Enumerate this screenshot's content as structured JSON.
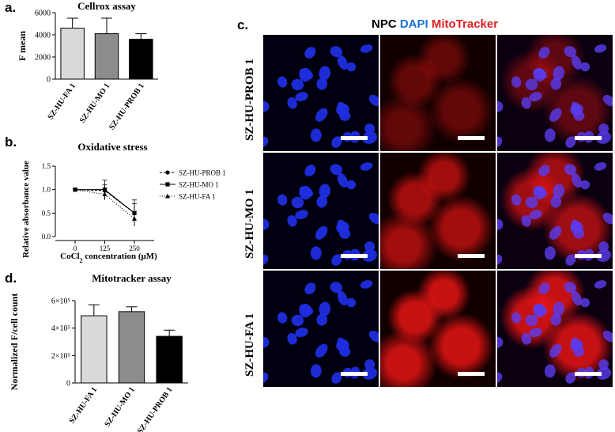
{
  "panel_labels": {
    "a": "a.",
    "b": "b.",
    "c": "c.",
    "d": "d."
  },
  "chart_data": [
    {
      "id": "a",
      "type": "bar",
      "title": "Cellrox assay",
      "ylabel": "F mean",
      "xlabel": "",
      "categories": [
        "SZ-HU-FA 1",
        "SZ-HU-MO 1",
        "SZ-HU-PROB 1"
      ],
      "values": [
        4600,
        4100,
        3600
      ],
      "errors": [
        900,
        1400,
        500
      ],
      "ylim": [
        0,
        6000
      ],
      "yticks": [
        "0",
        "2000",
        "4000",
        "6000"
      ],
      "bar_colors": [
        "#d9d9d9",
        "#8c8c8c",
        "#000000"
      ]
    },
    {
      "id": "b",
      "type": "line",
      "title": "Oxidative stress",
      "ylabel": "Relative absorbance value",
      "xlabel_prefix": "CoCl",
      "xlabel_sub": "2",
      "xlabel_suffix": " concentration (μM)",
      "x": [
        0,
        125,
        250
      ],
      "xticks": [
        "0",
        "125",
        "250"
      ],
      "ylim": [
        0,
        1.5
      ],
      "yticks": [
        "0.0",
        "0.5",
        "1.0",
        "1.5"
      ],
      "series": [
        {
          "name": "SZ-HU-PROB 1",
          "values": [
            1.0,
            0.98,
            0.5
          ],
          "errors": [
            0.02,
            0.12,
            0.28
          ],
          "marker": "circle",
          "dash": "3,2"
        },
        {
          "name": "SZ-HU-MO 1",
          "values": [
            1.0,
            1.0,
            0.5
          ],
          "errors": [
            0.02,
            0.2,
            0.2
          ],
          "marker": "square",
          "dash": ""
        },
        {
          "name": "SZ-HU-FA 1",
          "values": [
            1.0,
            0.9,
            0.38
          ],
          "errors": [
            0.02,
            0.12,
            0.15
          ],
          "marker": "triangle",
          "dash": "1,2"
        }
      ]
    },
    {
      "id": "d",
      "type": "bar",
      "title": "Mitotracker assay",
      "ylabel": "Normalized F/cell count",
      "xlabel": "",
      "categories": [
        "SZ-HU-FA 1",
        "SZ-HU-MO 1",
        "SZ-HU-PROB 1"
      ],
      "values": [
        490000,
        520000,
        340000
      ],
      "errors": [
        80000,
        35000,
        45000
      ],
      "ylim": [
        0,
        600000
      ],
      "yticks": [
        "0",
        "2×10⁵",
        "4×10⁵",
        "6×10⁵"
      ],
      "bar_colors": [
        "#d9d9d9",
        "#8c8c8c",
        "#000000"
      ]
    }
  ],
  "micrographs": {
    "title_parts": [
      {
        "text": "NPC ",
        "color": "#000000"
      },
      {
        "text": "DAPI ",
        "color": "#1e6fd9"
      },
      {
        "text": "MitoTracker",
        "color": "#e02020"
      }
    ],
    "rows": [
      "SZ-HU-PROB 1",
      "SZ-HU-MO 1",
      "SZ-HU-FA 1"
    ],
    "channels": [
      "DAPI",
      "MitoTracker",
      "Merge"
    ],
    "intensity": [
      0.45,
      0.8,
      1.0
    ]
  }
}
